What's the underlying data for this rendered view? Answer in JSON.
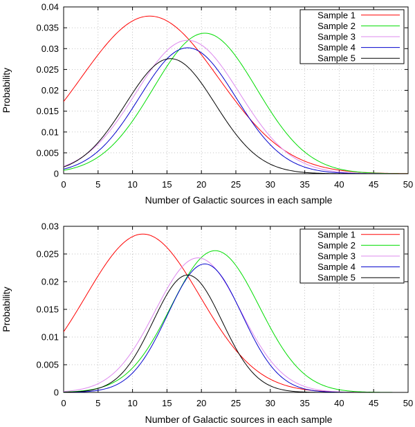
{
  "chart_data": [
    {
      "type": "line",
      "panel": "top",
      "title": "",
      "xlabel": "Number of Galactic sources in each sample",
      "ylabel": "Probability",
      "xlim": [
        0,
        50
      ],
      "ylim": [
        0,
        0.04
      ],
      "xticks": [
        "0",
        "5",
        "10",
        "15",
        "20",
        "25",
        "30",
        "35",
        "40",
        "45",
        "50"
      ],
      "yticks": [
        "0",
        "0.005",
        "0.01",
        "0.015",
        "0.02",
        "0.025",
        "0.03",
        "0.035",
        "0.04"
      ],
      "grid": true,
      "legend_position": "top-right",
      "series": [
        {
          "name": "Sample 1",
          "color": "#ff0000",
          "mu": 12.5,
          "sigma": 10.0,
          "peak": 0.0378
        },
        {
          "name": "Sample 2",
          "color": "#00dd00",
          "mu": 20.5,
          "sigma": 7.5,
          "peak": 0.0337
        },
        {
          "name": "Sample 3",
          "color": "#dd88ee",
          "mu": 18.0,
          "sigma": 7.5,
          "peak": 0.032
        },
        {
          "name": "Sample 4",
          "color": "#0000cc",
          "mu": 18.0,
          "sigma": 7.0,
          "peak": 0.0302
        },
        {
          "name": "Sample 5",
          "color": "#000000",
          "mu": 15.5,
          "sigma": 6.5,
          "peak": 0.0276
        }
      ]
    },
    {
      "type": "line",
      "panel": "bottom",
      "title": "",
      "xlabel": "Number of Galactic sources in each sample",
      "ylabel": "Probability",
      "xlim": [
        0,
        50
      ],
      "ylim": [
        0,
        0.03
      ],
      "xticks": [
        "0",
        "5",
        "10",
        "15",
        "20",
        "25",
        "30",
        "35",
        "40",
        "45",
        "50"
      ],
      "yticks": [
        "0",
        "0.005",
        "0.01",
        "0.015",
        "0.02",
        "0.025",
        "0.03"
      ],
      "grid": true,
      "legend_position": "top-right",
      "series": [
        {
          "name": "Sample 1",
          "color": "#ff0000",
          "mu": 11.5,
          "sigma": 8.3,
          "peak": 0.0286
        },
        {
          "name": "Sample 2",
          "color": "#00dd00",
          "mu": 22.0,
          "sigma": 6.4,
          "peak": 0.0256
        },
        {
          "name": "Sample 3",
          "color": "#dd88ee",
          "mu": 19.5,
          "sigma": 6.2,
          "peak": 0.0243
        },
        {
          "name": "Sample 4",
          "color": "#0000cc",
          "mu": 20.5,
          "sigma": 5.4,
          "peak": 0.0232
        },
        {
          "name": "Sample 5",
          "color": "#000000",
          "mu": 18.0,
          "sigma": 5.0,
          "peak": 0.0212
        }
      ]
    }
  ]
}
